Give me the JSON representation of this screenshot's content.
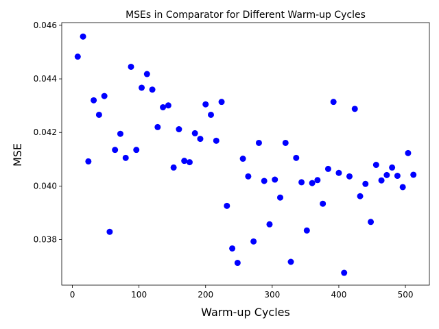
{
  "chart_data": {
    "type": "scatter",
    "title": "MSEs in Comparator for Different Warm-up Cycles",
    "xlabel": "Warm-up Cycles",
    "ylabel": "MSE",
    "xlim": [
      -16,
      536
    ],
    "ylim": [
      0.0363,
      0.0461
    ],
    "xticks": [
      0,
      100,
      200,
      300,
      400,
      500
    ],
    "yticks": [
      0.038,
      0.04,
      0.042,
      0.044,
      0.046
    ],
    "ytick_labels": [
      "0.038",
      "0.040",
      "0.042",
      "0.044",
      "0.046"
    ],
    "grid": false,
    "marker_color": "#0000ff",
    "series": [
      {
        "points": [
          [
            8,
            0.04483
          ],
          [
            16,
            0.04558
          ],
          [
            24,
            0.04092
          ],
          [
            32,
            0.0432
          ],
          [
            40,
            0.04266
          ],
          [
            48,
            0.04336
          ],
          [
            56,
            0.03829
          ],
          [
            64,
            0.04135
          ],
          [
            72,
            0.04195
          ],
          [
            80,
            0.04105
          ],
          [
            88,
            0.04445
          ],
          [
            96,
            0.04135
          ],
          [
            104,
            0.04367
          ],
          [
            112,
            0.04418
          ],
          [
            120,
            0.0436
          ],
          [
            128,
            0.0422
          ],
          [
            136,
            0.04294
          ],
          [
            144,
            0.04301
          ],
          [
            152,
            0.04069
          ],
          [
            160,
            0.04212
          ],
          [
            168,
            0.04094
          ],
          [
            176,
            0.04089
          ],
          [
            184,
            0.04197
          ],
          [
            192,
            0.04176
          ],
          [
            200,
            0.04305
          ],
          [
            208,
            0.04266
          ],
          [
            216,
            0.04169
          ],
          [
            224,
            0.04314
          ],
          [
            232,
            0.03926
          ],
          [
            240,
            0.03767
          ],
          [
            248,
            0.03713
          ],
          [
            256,
            0.04102
          ],
          [
            264,
            0.04036
          ],
          [
            272,
            0.03793
          ],
          [
            280,
            0.04161
          ],
          [
            288,
            0.04019
          ],
          [
            296,
            0.03857
          ],
          [
            304,
            0.04024
          ],
          [
            312,
            0.03957
          ],
          [
            320,
            0.04161
          ],
          [
            328,
            0.03717
          ],
          [
            336,
            0.04105
          ],
          [
            344,
            0.04014
          ],
          [
            352,
            0.03834
          ],
          [
            360,
            0.04011
          ],
          [
            368,
            0.04022
          ],
          [
            376,
            0.03934
          ],
          [
            384,
            0.04064
          ],
          [
            392,
            0.04314
          ],
          [
            400,
            0.04049
          ],
          [
            408,
            0.03676
          ],
          [
            416,
            0.04036
          ],
          [
            424,
            0.04288
          ],
          [
            432,
            0.03962
          ],
          [
            440,
            0.04008
          ],
          [
            448,
            0.03866
          ],
          [
            456,
            0.04079
          ],
          [
            464,
            0.04021
          ],
          [
            472,
            0.04041
          ],
          [
            480,
            0.04069
          ],
          [
            488,
            0.04038
          ],
          [
            496,
            0.03996
          ],
          [
            504,
            0.04123
          ],
          [
            512,
            0.04042
          ]
        ]
      }
    ]
  }
}
